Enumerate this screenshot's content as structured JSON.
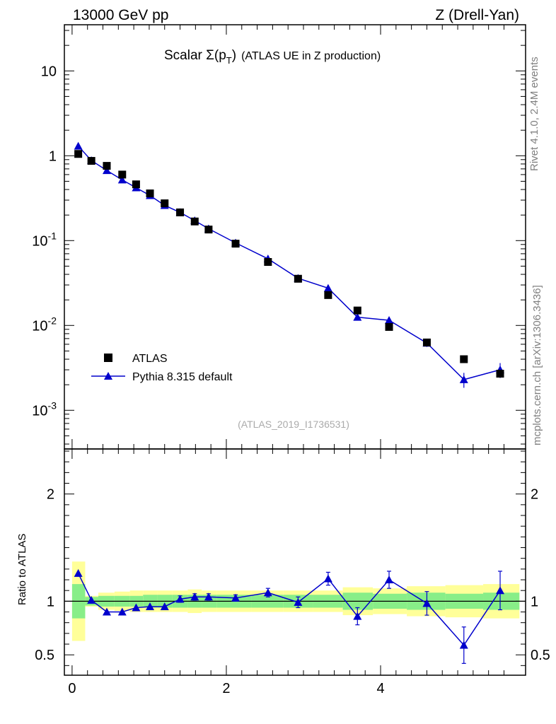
{
  "header": {
    "energy_label": "13000 GeV pp",
    "process_label": "Z (Drell-Yan)",
    "title_prefix": "Scalar ",
    "title_sigma": "Σ(p",
    "title_sub": "T",
    "title_close": ")",
    "title_suffix": "(ATLAS UE in Z production)",
    "analysis_id": "(ATLAS_2019_I1736531)",
    "side_label_top": "Rivet 4.1.0,  2.4M events",
    "side_label_bottom": "mcplots.cern.ch [arXiv:1306.3436]"
  },
  "legend": {
    "atlas_label": "ATLAS",
    "pythia_label": "Pythia 8.315 default"
  },
  "colors": {
    "data_marker": "#000000",
    "mc_line": "#0000cc",
    "band_stat": "#88ee88",
    "band_total": "#ffff99"
  },
  "chart_data": {
    "type": "line",
    "xlim": [
      -0.1,
      5.88
    ],
    "main": {
      "yscale": "log",
      "ylim": [
        0.00035,
        35
      ],
      "ytick_labels": [
        "10",
        "1",
        "10^-1",
        "10^-2",
        "10^-3"
      ],
      "ytick_values": [
        10,
        1,
        0.1,
        0.01,
        0.001
      ]
    },
    "ratio": {
      "ylabel": "Ratio to ATLAS",
      "ylim": [
        0.31,
        2.42
      ],
      "ytick_labels": [
        "0.5",
        "1",
        "2"
      ],
      "ytick_values": [
        0.5,
        1,
        2
      ]
    },
    "xtick_labels": [
      "0",
      "2",
      "4"
    ],
    "xtick_values": [
      0,
      2,
      4
    ],
    "atlas": {
      "name": "ATLAS",
      "x": [
        0.08,
        0.25,
        0.45,
        0.65,
        0.83,
        1.01,
        1.2,
        1.4,
        1.59,
        1.77,
        2.12,
        2.54,
        2.93,
        3.32,
        3.7,
        4.11,
        4.6,
        5.08,
        5.55
      ],
      "y": [
        1.05,
        0.87,
        0.76,
        0.6,
        0.46,
        0.36,
        0.275,
        0.215,
        0.168,
        0.135,
        0.092,
        0.056,
        0.0355,
        0.0228,
        0.015,
        0.0096,
        0.0063,
        0.004,
        0.0027
      ],
      "x_low": [
        0.0,
        0.17,
        0.34,
        0.55,
        0.75,
        0.92,
        1.11,
        1.3,
        1.5,
        1.68,
        1.88,
        2.33,
        2.74,
        3.12,
        3.51,
        3.9,
        4.34,
        4.84,
        5.33
      ],
      "x_high": [
        0.17,
        0.34,
        0.55,
        0.75,
        0.92,
        1.11,
        1.3,
        1.5,
        1.68,
        1.88,
        2.33,
        2.74,
        3.12,
        3.51,
        3.9,
        4.34,
        4.84,
        5.33,
        5.8
      ],
      "stat_err_rel": [
        0.16,
        0.04,
        0.05,
        0.05,
        0.05,
        0.06,
        0.06,
        0.06,
        0.06,
        0.06,
        0.06,
        0.06,
        0.06,
        0.06,
        0.08,
        0.07,
        0.08,
        0.07,
        0.08
      ],
      "total_err_rel": [
        0.37,
        0.05,
        0.08,
        0.09,
        0.1,
        0.1,
        0.1,
        0.1,
        0.11,
        0.1,
        0.1,
        0.1,
        0.1,
        0.1,
        0.13,
        0.12,
        0.14,
        0.15,
        0.16
      ]
    },
    "pythia": {
      "name": "Pythia 8.315 default",
      "x": [
        0.08,
        0.25,
        0.45,
        0.65,
        0.83,
        1.01,
        1.2,
        1.4,
        1.59,
        1.77,
        2.12,
        2.54,
        2.93,
        3.32,
        3.7,
        4.11,
        4.6,
        5.08,
        5.55
      ],
      "y": [
        1.3,
        0.88,
        0.67,
        0.52,
        0.42,
        0.34,
        0.26,
        0.215,
        0.172,
        0.138,
        0.094,
        0.061,
        0.036,
        0.0275,
        0.0125,
        0.0115,
        0.0062,
        0.0023,
        0.003
      ],
      "y_err_rel": [
        0.02,
        0.02,
        0.02,
        0.02,
        0.02,
        0.02,
        0.025,
        0.03,
        0.03,
        0.03,
        0.03,
        0.04,
        0.05,
        0.05,
        0.07,
        0.07,
        0.1,
        0.2,
        0.2
      ],
      "ratio": [
        1.26,
        1.01,
        0.9,
        0.9,
        0.94,
        0.95,
        0.95,
        1.02,
        1.04,
        1.04,
        1.03,
        1.08,
        0.99,
        1.21,
        0.86,
        1.2,
        0.98,
        0.59,
        1.1
      ],
      "ratio_err": [
        0.01,
        0.01,
        0.01,
        0.01,
        0.02,
        0.02,
        0.02,
        0.03,
        0.03,
        0.03,
        0.03,
        0.04,
        0.05,
        0.06,
        0.08,
        0.08,
        0.11,
        0.17,
        0.18
      ]
    }
  }
}
